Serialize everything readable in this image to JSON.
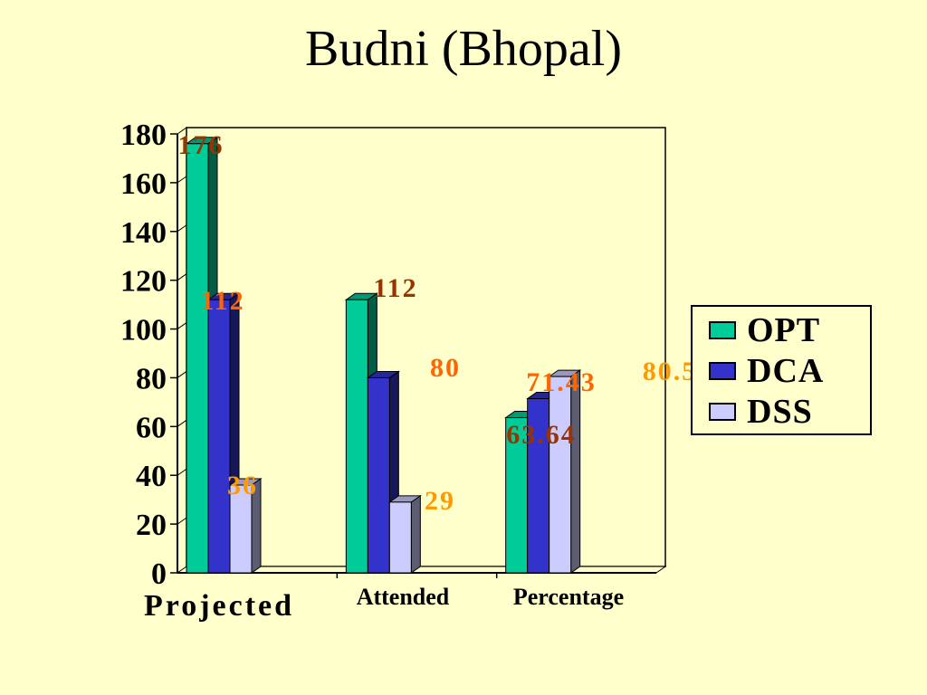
{
  "title": "Budni (Bhopal)",
  "chart_data": {
    "type": "bar",
    "title": "Budni (Bhopal)",
    "categories": [
      "Projected",
      "Attended",
      "Percentage"
    ],
    "ylim": [
      0,
      180
    ],
    "yticks": [
      0,
      20,
      40,
      60,
      80,
      100,
      120,
      140,
      160,
      180
    ],
    "grid": true,
    "legend": "right",
    "series": [
      {
        "name": "OPT",
        "values": [
          176,
          112,
          63.64
        ],
        "labels": [
          "176",
          "112",
          "63.64"
        ],
        "color": "#00cc99",
        "label_color": "#993300"
      },
      {
        "name": "DCA",
        "values": [
          112,
          80,
          71.43
        ],
        "labels": [
          "112",
          "80",
          "71.43"
        ],
        "color": "#3333cc",
        "label_color": "#ff6600"
      },
      {
        "name": "DSS",
        "values": [
          36,
          29,
          80.5
        ],
        "labels": [
          "36",
          "29",
          "80.5"
        ],
        "color": "#ccccff",
        "label_color": "#ff9900"
      }
    ]
  }
}
